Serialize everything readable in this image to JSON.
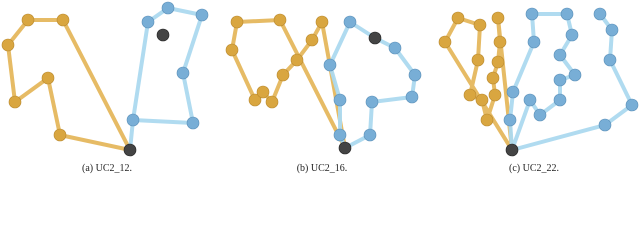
{
  "captions": [
    "(a) UC2_12.",
    "(b) UC2_16.",
    "(c) UC2_22."
  ]
}
